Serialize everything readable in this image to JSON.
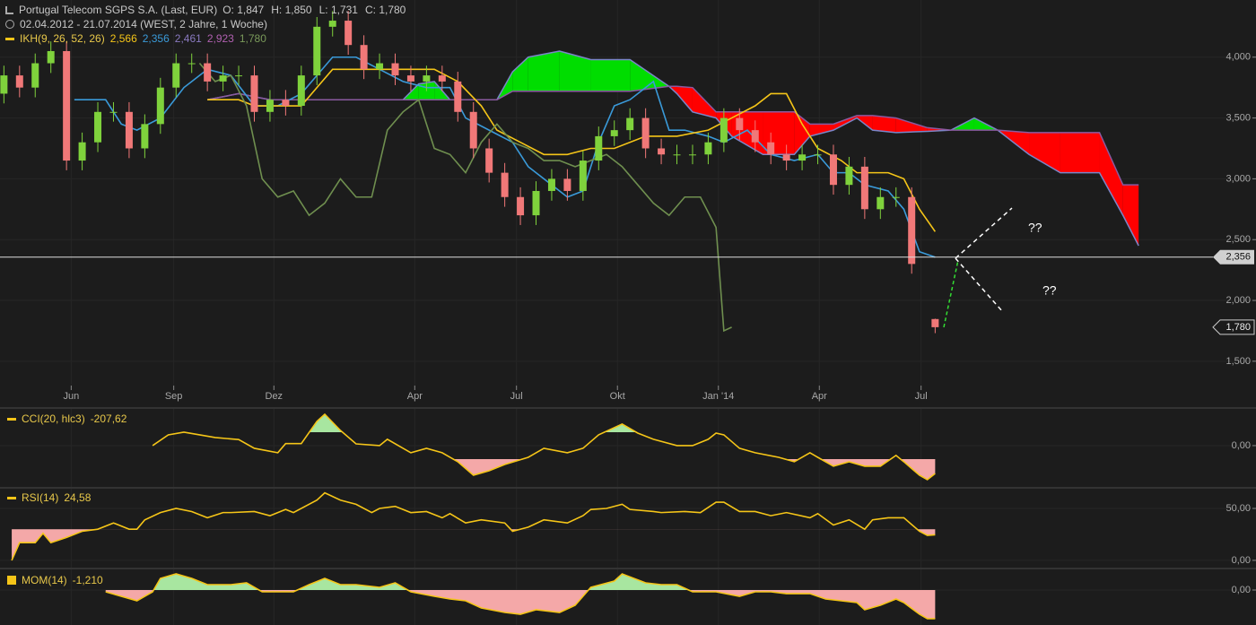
{
  "chart_data": [
    {
      "type": "candlestick",
      "title": "Portugal Telecom SGPS S.A. (Last, EUR)",
      "ohlc": [
        "O: 1,847",
        "H: 1,850",
        "L: 1,731",
        "C: 1,780"
      ],
      "subtitle": "02.04.2012 - 21.07.2014 (WEST, 2 Jahre, 1 Woche)",
      "indicator": "IKH(9, 26, 52, 26)",
      "indicator_values": [
        {
          "text": "2,566",
          "color": "#f5c518"
        },
        {
          "text": "2,356",
          "color": "#3a9ad9"
        },
        {
          "text": "2,461",
          "color": "#8a7ac0"
        },
        {
          "text": "2,923",
          "color": "#b060b0"
        },
        {
          "text": "1,780",
          "color": "#7a9a5a"
        }
      ],
      "up_color": "#7fd23c",
      "down_color": "#f07878",
      "x": [
        0,
        2,
        4,
        6,
        8,
        10,
        12,
        14,
        16,
        18,
        20,
        22,
        24,
        26,
        28,
        30,
        32,
        34,
        36,
        38,
        40,
        42,
        44,
        46,
        48,
        50,
        52,
        54,
        56,
        58,
        60,
        62,
        64,
        66,
        68,
        70,
        72,
        74,
        76,
        78,
        80,
        82,
        84,
        86,
        88,
        90,
        92,
        94,
        96,
        98,
        100,
        102,
        104,
        106,
        108,
        110,
        112,
        114,
        116,
        119
      ],
      "open": [
        3.7,
        3.85,
        3.75,
        3.95,
        4.05,
        3.15,
        3.3,
        3.55,
        3.55,
        3.25,
        3.45,
        3.75,
        3.95,
        3.95,
        3.8,
        3.85,
        3.85,
        3.55,
        3.65,
        3.6,
        3.85,
        4.25,
        4.3,
        4.1,
        3.9,
        3.95,
        3.85,
        3.8,
        3.85,
        3.8,
        3.55,
        3.25,
        3.05,
        2.85,
        2.7,
        2.9,
        3.0,
        2.9,
        3.15,
        3.35,
        3.4,
        3.5,
        3.25,
        3.2,
        3.2,
        3.2,
        3.3,
        3.5,
        3.4,
        3.3,
        3.2,
        3.15,
        3.2,
        3.2,
        2.95,
        3.1,
        2.75,
        2.85,
        2.85,
        1.847
      ],
      "high": [
        3.93,
        3.93,
        4.03,
        4.13,
        4.13,
        3.38,
        3.63,
        3.63,
        3.63,
        3.53,
        3.83,
        4.03,
        4.03,
        4.03,
        3.93,
        3.93,
        3.93,
        3.73,
        3.73,
        3.93,
        4.33,
        4.38,
        4.38,
        4.18,
        4.03,
        4.03,
        3.93,
        3.93,
        3.93,
        3.88,
        3.63,
        3.33,
        3.13,
        2.93,
        2.98,
        3.08,
        3.08,
        3.23,
        3.43,
        3.48,
        3.58,
        3.58,
        3.33,
        3.28,
        3.28,
        3.38,
        3.58,
        3.58,
        3.48,
        3.38,
        3.28,
        3.28,
        3.28,
        3.28,
        3.18,
        3.18,
        2.93,
        2.93,
        2.93,
        1.85
      ],
      "low": [
        3.62,
        3.67,
        3.67,
        3.87,
        3.07,
        3.07,
        3.22,
        3.47,
        3.17,
        3.17,
        3.37,
        3.67,
        3.87,
        3.72,
        3.72,
        3.77,
        3.47,
        3.47,
        3.52,
        3.52,
        3.77,
        4.17,
        4.02,
        3.82,
        3.82,
        3.77,
        3.72,
        3.72,
        3.72,
        3.47,
        3.17,
        2.97,
        2.77,
        2.62,
        2.62,
        2.82,
        2.82,
        2.82,
        3.07,
        3.27,
        3.32,
        3.17,
        3.12,
        3.12,
        3.12,
        3.12,
        3.22,
        3.32,
        3.22,
        3.12,
        3.07,
        3.07,
        3.12,
        2.87,
        2.87,
        2.67,
        2.67,
        2.77,
        2.22,
        1.731
      ],
      "close": [
        3.85,
        3.75,
        3.95,
        4.05,
        3.15,
        3.3,
        3.55,
        3.55,
        3.25,
        3.45,
        3.75,
        3.95,
        3.95,
        3.8,
        3.85,
        3.85,
        3.55,
        3.65,
        3.6,
        3.85,
        4.25,
        4.3,
        4.1,
        3.9,
        3.95,
        3.85,
        3.8,
        3.85,
        3.8,
        3.55,
        3.25,
        3.05,
        2.85,
        2.7,
        2.9,
        3.0,
        2.9,
        3.15,
        3.35,
        3.4,
        3.5,
        3.25,
        3.2,
        3.2,
        3.2,
        3.3,
        3.5,
        3.4,
        3.3,
        3.2,
        3.15,
        3.2,
        3.2,
        2.95,
        3.1,
        2.75,
        2.85,
        2.85,
        2.3,
        1.78
      ],
      "lines": [
        {
          "color": "#3a9ad9",
          "x": [
            9,
            13,
            15,
            17,
            20,
            23,
            26,
            29,
            32,
            35,
            38,
            40,
            42,
            45,
            48,
            51,
            54,
            57,
            59,
            62,
            65,
            67,
            70,
            72,
            74,
            76,
            78,
            80,
            83,
            85,
            87,
            90,
            92,
            95,
            98,
            101,
            104,
            106,
            108,
            110,
            113,
            115,
            117,
            119
          ],
          "values": [
            3.65,
            3.65,
            3.45,
            3.4,
            3.5,
            3.75,
            3.9,
            3.85,
            3.6,
            3.6,
            3.7,
            3.85,
            4.0,
            4.0,
            3.9,
            3.8,
            3.75,
            3.75,
            3.5,
            3.4,
            3.3,
            3.1,
            2.95,
            2.85,
            2.9,
            3.3,
            3.6,
            3.65,
            3.8,
            3.4,
            3.4,
            3.35,
            3.3,
            3.4,
            3.2,
            3.15,
            3.2,
            3.05,
            3.05,
            2.95,
            2.9,
            2.75,
            2.4,
            2.356
          ]
        },
        {
          "color": "#f5c518",
          "x": [
            26,
            30,
            32,
            35,
            38,
            40,
            42,
            45,
            50,
            55,
            58,
            61,
            63,
            66,
            69,
            72,
            75,
            78,
            82,
            86,
            90,
            93,
            96,
            98,
            100,
            102,
            104,
            107,
            109,
            113,
            115,
            117,
            119
          ],
          "values": [
            3.65,
            3.65,
            3.6,
            3.6,
            3.6,
            3.75,
            3.9,
            3.9,
            3.9,
            3.9,
            3.8,
            3.6,
            3.4,
            3.3,
            3.2,
            3.2,
            3.25,
            3.25,
            3.35,
            3.35,
            3.4,
            3.5,
            3.6,
            3.7,
            3.7,
            3.45,
            3.25,
            3.15,
            3.05,
            3.05,
            3.0,
            2.75,
            2.566
          ]
        },
        {
          "color": "#6f8f4f",
          "x": [
            25,
            27,
            29,
            31,
            33,
            35,
            37,
            39,
            41,
            43,
            45,
            47,
            49,
            51,
            53,
            55,
            57,
            59,
            61,
            63,
            65,
            67,
            69,
            71,
            73,
            75,
            77,
            79,
            81,
            83,
            85,
            87,
            89,
            91,
            92,
            93
          ],
          "values": [
            3.95,
            3.8,
            3.85,
            3.6,
            3.0,
            2.85,
            2.9,
            2.7,
            2.8,
            3.0,
            2.85,
            2.85,
            3.4,
            3.55,
            3.65,
            3.25,
            3.2,
            3.05,
            3.3,
            3.45,
            3.3,
            3.25,
            3.15,
            3.15,
            3.1,
            3.15,
            3.2,
            3.1,
            2.95,
            2.8,
            2.7,
            2.85,
            2.85,
            2.6,
            1.75,
            1.78
          ]
        }
      ],
      "cloud": {
        "up_color": "#00dd00",
        "down_color": "#ff0000",
        "a_color": "#7a86c8",
        "b_color": "#8a5aa0",
        "x": [
          26,
          30,
          34,
          40,
          51,
          53,
          55,
          57,
          63,
          65,
          67,
          71,
          75,
          80,
          85,
          86,
          88,
          91,
          93,
          97,
          101,
          103,
          106,
          109,
          111,
          114,
          118,
          121,
          124,
          127,
          131,
          135,
          140,
          143,
          145
        ],
        "a": [
          3.65,
          3.7,
          3.65,
          3.65,
          3.65,
          3.78,
          3.8,
          3.65,
          3.65,
          3.88,
          4.0,
          4.05,
          3.98,
          3.98,
          3.76,
          3.7,
          3.55,
          3.5,
          3.35,
          3.2,
          3.2,
          3.35,
          3.4,
          3.5,
          3.4,
          3.38,
          3.39,
          3.4,
          3.5,
          3.4,
          3.2,
          3.05,
          3.05,
          2.7,
          2.45
        ],
        "b": [
          3.65,
          3.7,
          3.65,
          3.65,
          3.65,
          3.65,
          3.65,
          3.65,
          3.65,
          3.72,
          3.72,
          3.72,
          3.72,
          3.72,
          3.76,
          3.76,
          3.75,
          3.55,
          3.55,
          3.55,
          3.55,
          3.45,
          3.45,
          3.52,
          3.52,
          3.5,
          3.42,
          3.4,
          3.4,
          3.4,
          3.38,
          3.38,
          3.38,
          2.95,
          2.95
        ]
      },
      "xlim": [
        -0.5,
        160
      ],
      "xticks": [
        {
          "value": 8.6,
          "label": "Jun"
        },
        {
          "value": 21.7,
          "label": "Sep"
        },
        {
          "value": 34.5,
          "label": "Dez"
        },
        {
          "value": 52.5,
          "label": "Apr"
        },
        {
          "value": 65.5,
          "label": "Jul"
        },
        {
          "value": 78.4,
          "label": "Okt"
        },
        {
          "value": 91.3,
          "label": "Jan '14"
        },
        {
          "value": 104.2,
          "label": "Apr"
        },
        {
          "value": 117.2,
          "label": "Jul"
        }
      ],
      "ylim": [
        1.3,
        4.47
      ],
      "yticks": [
        {
          "value": 4,
          "label": "4,000"
        },
        {
          "value": 3.5,
          "label": "3,500"
        },
        {
          "value": 3,
          "label": "3,000"
        },
        {
          "value": 2.5,
          "label": "2,500"
        },
        {
          "value": 2,
          "label": "2,000"
        },
        {
          "value": 1.5,
          "label": "1,500"
        }
      ],
      "hline": {
        "value": 2.356,
        "label": "2,356"
      },
      "last_price": {
        "value": 1.78,
        "label": "1,780"
      },
      "annotations": [
        "??",
        "??"
      ]
    },
    {
      "type": "line",
      "legend": "CCI(20, hlc3)",
      "current": "-207,62",
      "color": "#f5c518",
      "x": [
        19,
        21,
        23,
        25,
        27,
        30,
        32,
        35,
        36,
        38,
        40,
        41,
        43,
        45,
        48,
        49,
        52,
        54,
        56,
        58,
        60,
        62,
        64,
        67,
        69,
        72,
        74,
        76,
        79,
        81,
        83,
        86,
        88,
        90,
        91,
        92,
        94,
        96,
        99,
        101,
        103,
        104,
        106,
        108,
        110,
        112,
        114,
        115,
        117,
        118,
        119
      ],
      "values": [
        0,
        80,
        100,
        80,
        60,
        45,
        -20,
        -53,
        15,
        15,
        180,
        233,
        113,
        13,
        0,
        47,
        -53,
        -20,
        -53,
        -120,
        -220,
        -187,
        -140,
        -87,
        -20,
        -53,
        -20,
        80,
        160,
        93,
        47,
        0,
        0,
        47,
        93,
        80,
        -20,
        -53,
        -87,
        -120,
        -53,
        -87,
        -153,
        -120,
        -153,
        -153,
        -73,
        -120,
        -220,
        -253,
        -207.62
      ],
      "fill_above": {
        "value": 100,
        "color": "#a8e6a0"
      },
      "fill_below": {
        "value": -100,
        "color": "#f4a8a8"
      },
      "ylim": [
        -307,
        273
      ],
      "yticks": [
        {
          "value": 0,
          "label": "0,00"
        }
      ]
    },
    {
      "type": "line",
      "legend": "RSI(14)",
      "current": "24,58",
      "color": "#f5c518",
      "x": [
        1,
        2,
        4,
        5,
        6,
        8,
        10,
        12,
        14,
        16,
        17,
        18,
        20,
        22,
        24,
        26,
        28,
        29,
        32,
        34,
        36,
        37,
        40,
        41,
        43,
        45,
        47,
        48,
        50,
        52,
        54,
        56,
        57,
        59,
        61,
        64,
        65,
        67,
        69,
        72,
        74,
        75,
        77,
        79,
        80,
        83,
        84,
        87,
        89,
        91,
        92,
        94,
        96,
        98,
        100,
        103,
        104,
        106,
        108,
        110,
        111,
        113,
        115,
        117,
        118,
        119
      ],
      "values": [
        0,
        17,
        17,
        26,
        17,
        22,
        28,
        30,
        36,
        30,
        30,
        39,
        46,
        50,
        47,
        41,
        46,
        46,
        47,
        43,
        49,
        46,
        58,
        65,
        58,
        54,
        46,
        50,
        52,
        46,
        47,
        41,
        45,
        36,
        39,
        36,
        28,
        32,
        39,
        36,
        43,
        49,
        50,
        54,
        49,
        47,
        46,
        47,
        46,
        56,
        56,
        47,
        47,
        43,
        46,
        41,
        45,
        34,
        39,
        30,
        39,
        41,
        41,
        28,
        24,
        24.58
      ],
      "fill_above": {
        "value": 70,
        "color": "#a8e6a0"
      },
      "fill_below": {
        "value": 30,
        "color": "#f4a8a8"
      },
      "ylim": [
        -7,
        69
      ],
      "yticks": [
        {
          "value": 0,
          "label": "0,00"
        },
        {
          "value": 50,
          "label": "50,00"
        }
      ]
    },
    {
      "type": "line",
      "legend": "MOM(14)",
      "current": "-1,210",
      "color": "#f5c518",
      "x": [
        13,
        17,
        19,
        20,
        22,
        24,
        26,
        29,
        31,
        33,
        35,
        37,
        39,
        41,
        43,
        45,
        48,
        50,
        52,
        55,
        57,
        59,
        61,
        64,
        66,
        68,
        71,
        73,
        75,
        78,
        79,
        82,
        84,
        86,
        88,
        91,
        94,
        96,
        98,
        100,
        103,
        105,
        107,
        109,
        110,
        112,
        114,
        115,
        117,
        118,
        119
      ],
      "values": [
        -0.076,
        -0.455,
        -0.076,
        0.492,
        0.682,
        0.492,
        0.227,
        0.227,
        0.303,
        -0.076,
        -0.076,
        -0.076,
        0.227,
        0.492,
        0.227,
        0.227,
        0.114,
        0.303,
        -0.076,
        -0.265,
        -0.379,
        -0.455,
        -0.758,
        -0.947,
        -1.023,
        -0.833,
        -0.947,
        -0.644,
        0.114,
        0.379,
        0.682,
        0.303,
        0.227,
        0.227,
        -0.076,
        -0.076,
        -0.265,
        -0.076,
        -0.076,
        -0.152,
        -0.152,
        -0.379,
        -0.455,
        -0.53,
        -0.833,
        -0.644,
        -0.379,
        -0.53,
        -1.023,
        -1.212,
        -1.21
      ],
      "fill_above": {
        "value": 0,
        "color": "#a8e6a0"
      },
      "fill_below": {
        "value": 0,
        "color": "#f4a8a8"
      },
      "ylim": [
        -1.477,
        0.871
      ],
      "yticks": [
        {
          "value": 0,
          "label": "0,00"
        }
      ]
    }
  ]
}
